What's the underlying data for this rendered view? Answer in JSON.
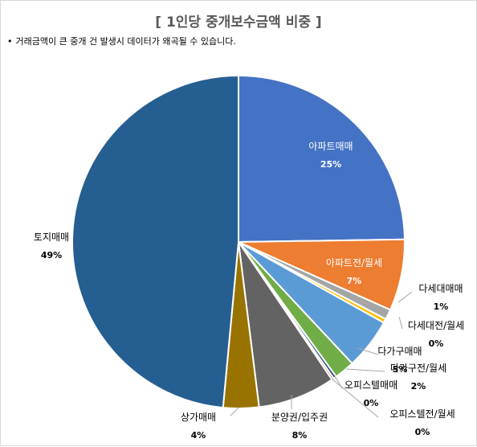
{
  "chart_data": {
    "type": "pie",
    "title": "[ 1인당 중개보수금액 비중 ]",
    "note": "거래금액이 큰 중개 건 발생시 데이터가 왜곡될 수 있습니다.",
    "note_bullet": "•",
    "series": [
      {
        "name": "아파트매매",
        "value": 25,
        "label": "25%",
        "color": "#4472c4"
      },
      {
        "name": "아파트전/월세",
        "value": 7,
        "label": "7%",
        "color": "#ed7d31"
      },
      {
        "name": "다세대매매",
        "value": 1,
        "label": "1%",
        "color": "#a5a5a5"
      },
      {
        "name": "다세대전/월세",
        "value": 0.4,
        "label": "0%",
        "color": "#ffc000"
      },
      {
        "name": "다가구매매",
        "value": 5,
        "label": "5%",
        "color": "#5b9bd5"
      },
      {
        "name": "다가구전/월세",
        "value": 2,
        "label": "2%",
        "color": "#70ad47"
      },
      {
        "name": "오피스텔매매",
        "value": 0.3,
        "label": "0%",
        "color": "#264478"
      },
      {
        "name": "오피스텔전/월세",
        "value": 0.2,
        "label": "0%",
        "color": "#9e480e"
      },
      {
        "name": "분양권/입주권",
        "value": 7.6,
        "label": "8%",
        "color": "#636363"
      },
      {
        "name": "상가매매",
        "value": 3.5,
        "label": "4%",
        "color": "#997300"
      },
      {
        "name": "토지매매",
        "value": 49,
        "label": "49%",
        "color": "#255e91"
      }
    ]
  }
}
